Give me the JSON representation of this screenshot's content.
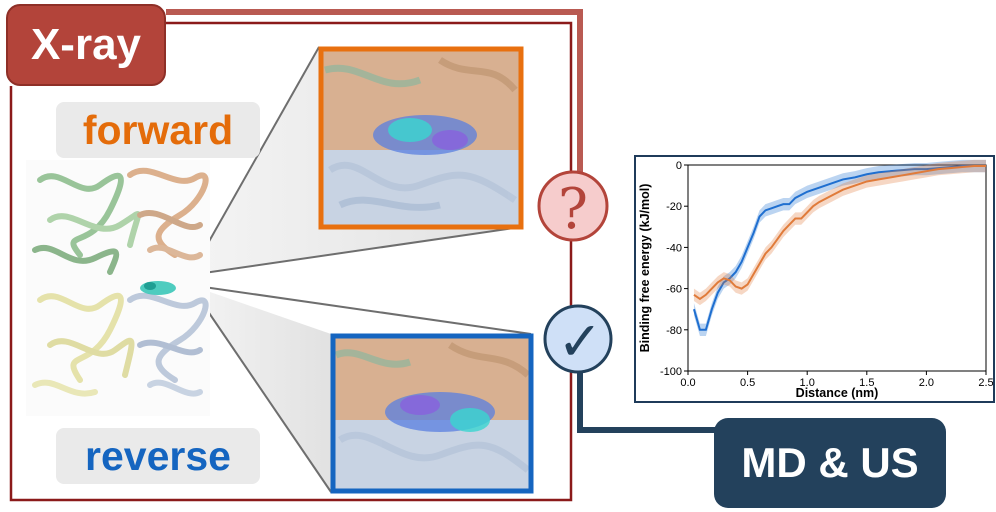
{
  "labels": {
    "xray": "X-ray",
    "forward": "forward",
    "reverse": "reverse",
    "md_us": "MD & US"
  },
  "status": {
    "forward_symbol": "?",
    "reverse_symbol": "✓"
  },
  "colors": {
    "xray_red": "#b3443a",
    "frame_red": "#8b1a1a",
    "forward_orange": "#e8700f",
    "reverse_blue": "#1565c0",
    "navy": "#23415c"
  },
  "chart_data": {
    "type": "line",
    "title": "",
    "xlabel": "Distance (nm)",
    "ylabel": "Binding free energy (kJ/mol)",
    "xlim": [
      0,
      2.5
    ],
    "ylim": [
      -100,
      0
    ],
    "xticks": [
      "0.0",
      "0.5",
      "1.0",
      "1.5",
      "2.0",
      "2.5"
    ],
    "yticks": [
      "0",
      "-20",
      "-40",
      "-60",
      "-80",
      "-100"
    ],
    "grid": false,
    "legend": "none",
    "series": [
      {
        "color": "#1f6fd0",
        "points": [
          [
            0.05,
            -70
          ],
          [
            0.1,
            -80
          ],
          [
            0.15,
            -80
          ],
          [
            0.2,
            -70
          ],
          [
            0.25,
            -62
          ],
          [
            0.3,
            -57
          ],
          [
            0.35,
            -55
          ],
          [
            0.4,
            -52
          ],
          [
            0.45,
            -47
          ],
          [
            0.5,
            -40
          ],
          [
            0.55,
            -33
          ],
          [
            0.6,
            -25
          ],
          [
            0.65,
            -22
          ],
          [
            0.7,
            -21
          ],
          [
            0.75,
            -20
          ],
          [
            0.8,
            -19
          ],
          [
            0.85,
            -19
          ],
          [
            0.9,
            -16
          ],
          [
            1.0,
            -13
          ],
          [
            1.1,
            -11
          ],
          [
            1.2,
            -9
          ],
          [
            1.3,
            -7
          ],
          [
            1.4,
            -6
          ],
          [
            1.5,
            -4.5
          ],
          [
            1.6,
            -3.5
          ],
          [
            1.7,
            -3
          ],
          [
            1.8,
            -2.5
          ],
          [
            1.9,
            -2
          ],
          [
            2.0,
            -2
          ],
          [
            2.1,
            -1.5
          ],
          [
            2.2,
            -1
          ],
          [
            2.3,
            -0.5
          ],
          [
            2.4,
            -0.5
          ],
          [
            2.5,
            -0.5
          ]
        ]
      },
      {
        "color": "#e07b3a",
        "points": [
          [
            0.05,
            -63
          ],
          [
            0.1,
            -65
          ],
          [
            0.15,
            -63
          ],
          [
            0.2,
            -60
          ],
          [
            0.25,
            -57
          ],
          [
            0.3,
            -55
          ],
          [
            0.35,
            -56
          ],
          [
            0.4,
            -59
          ],
          [
            0.45,
            -60
          ],
          [
            0.5,
            -58
          ],
          [
            0.55,
            -53
          ],
          [
            0.6,
            -48
          ],
          [
            0.65,
            -43
          ],
          [
            0.7,
            -40
          ],
          [
            0.75,
            -36
          ],
          [
            0.8,
            -32
          ],
          [
            0.85,
            -29
          ],
          [
            0.9,
            -26
          ],
          [
            0.95,
            -26
          ],
          [
            1.0,
            -23
          ],
          [
            1.05,
            -20
          ],
          [
            1.1,
            -18
          ],
          [
            1.2,
            -15
          ],
          [
            1.3,
            -12
          ],
          [
            1.4,
            -10
          ],
          [
            1.5,
            -8
          ],
          [
            1.6,
            -7
          ],
          [
            1.7,
            -6
          ],
          [
            1.8,
            -5
          ],
          [
            1.9,
            -4
          ],
          [
            2.0,
            -3
          ],
          [
            2.1,
            -2
          ],
          [
            2.2,
            -1.5
          ],
          [
            2.3,
            -1
          ],
          [
            2.4,
            -0.5
          ],
          [
            2.5,
            -0.5
          ]
        ]
      }
    ]
  }
}
